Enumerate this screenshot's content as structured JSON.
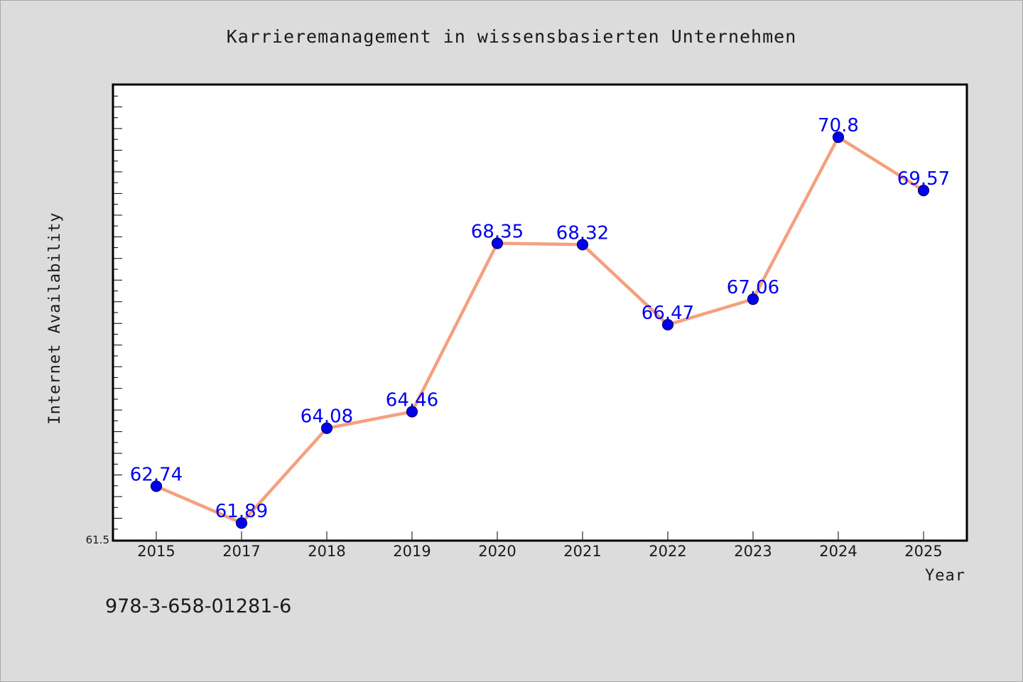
{
  "chart_data": {
    "type": "line",
    "title": "Karrieremanagement in wissensbasierten Unternehmen",
    "xlabel": "Year",
    "ylabel": "Internet Availability",
    "categories": [
      "2015",
      "2017",
      "2018",
      "2019",
      "2020",
      "2021",
      "2022",
      "2023",
      "2024",
      "2025"
    ],
    "series": [
      {
        "values": [
          62.74,
          61.89,
          64.08,
          64.46,
          68.35,
          68.32,
          66.47,
          67.06,
          70.8,
          69.57
        ],
        "labels": [
          "62.74",
          "61.89",
          "64.08",
          "64.46",
          "68.35",
          "68.32",
          "66.47",
          "67.06",
          "70.8",
          "69.57"
        ]
      }
    ],
    "ylim": [
      61.5,
      72.0
    ],
    "yticks": [
      {
        "value": 61.5,
        "label": "61.5"
      }
    ],
    "grid": false,
    "legend": "none",
    "colors": {
      "line": "#f4a07f",
      "marker": "#0000ee",
      "marker_edge": "#000066",
      "data_label": "#0000ee",
      "plot_background": "#ffffff",
      "figure_background": "#dcdcdc"
    }
  },
  "footnote": "978-3-658-01281-6"
}
